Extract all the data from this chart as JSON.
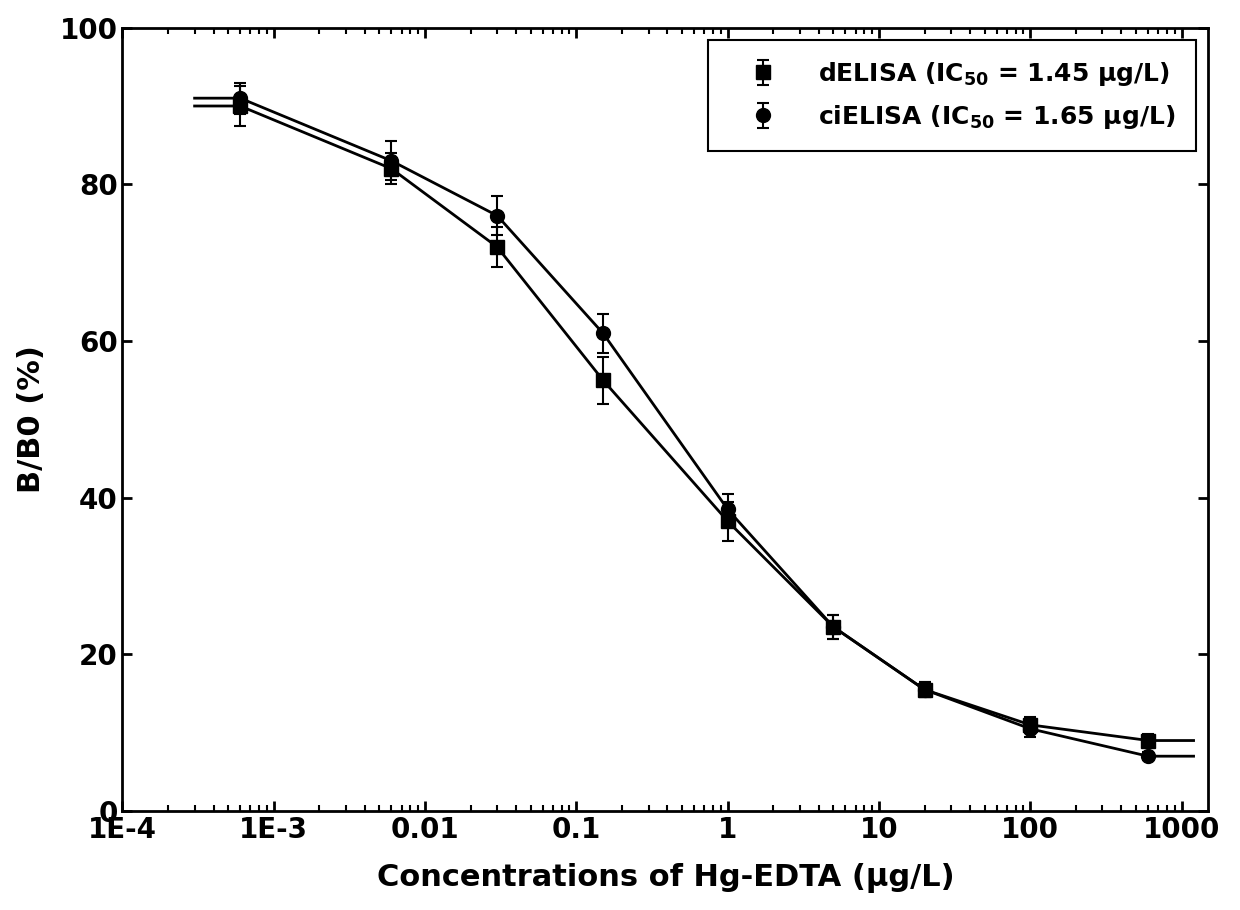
{
  "ylabel": "B/B0 (%)",
  "xlabel": "Concentrations of Hg-EDTA (μg/L)",
  "xlim": [
    0.0001,
    1500
  ],
  "ylim": [
    0,
    100
  ],
  "background_color": "#ffffff",
  "series": [
    {
      "name": "dELISA (IC$_{50}$ = 1.45 μg/L)",
      "marker": "s",
      "markersize": 10,
      "color": "#000000",
      "x": [
        0.0006,
        0.006,
        0.03,
        0.15,
        1.0,
        5.0,
        20.0,
        100.0,
        600.0
      ],
      "y": [
        90.0,
        82.0,
        72.0,
        55.0,
        37.0,
        23.5,
        15.5,
        11.0,
        9.0
      ],
      "yerr": [
        2.5,
        2.0,
        2.5,
        3.0,
        2.5,
        1.5,
        1.0,
        1.0,
        0.8
      ],
      "ic50": 1.45
    },
    {
      "name": "ciELISA (IC$_{50}$ = 1.65 μg/L)",
      "marker": "o",
      "markersize": 10,
      "color": "#000000",
      "x": [
        0.0006,
        0.006,
        0.03,
        0.15,
        1.0,
        5.0,
        20.0,
        100.0,
        600.0
      ],
      "y": [
        91.0,
        83.0,
        76.0,
        61.0,
        38.5,
        23.5,
        15.5,
        10.5,
        7.0
      ],
      "yerr": [
        2.0,
        2.5,
        2.5,
        2.5,
        2.0,
        1.5,
        1.0,
        1.0,
        0.5
      ],
      "ic50": 1.65
    }
  ],
  "xtick_labels": [
    "1E-4",
    "1E-3",
    "0.01",
    "0.1",
    "1",
    "10",
    "100",
    "1000"
  ],
  "xtick_values": [
    0.0001,
    0.001,
    0.01,
    0.1,
    1,
    10,
    100,
    1000
  ],
  "ytick_values": [
    0,
    20,
    40,
    60,
    80,
    100
  ],
  "legend_loc": "upper right",
  "line_color": "#000000",
  "line_width": 2.0,
  "capsize": 4,
  "font_family": "Arial",
  "tick_fontsize": 20,
  "label_fontsize": 22,
  "legend_fontsize": 18
}
